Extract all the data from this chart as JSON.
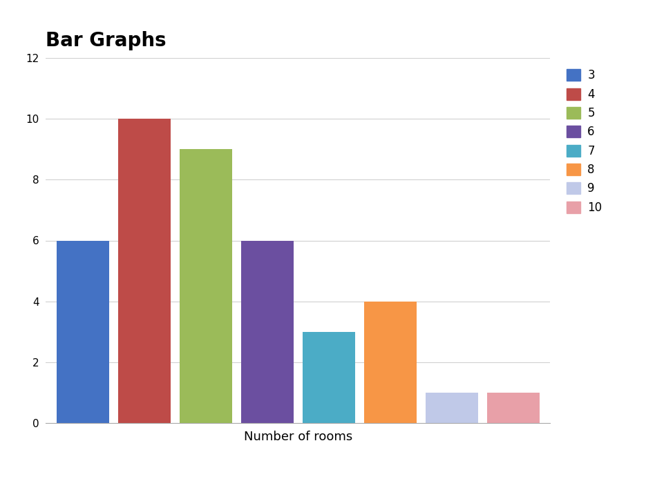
{
  "title": "Bar Graphs",
  "xlabel": "Number of rooms",
  "ylabel": "",
  "categories": [
    3,
    4,
    5,
    6,
    7,
    8,
    9,
    10
  ],
  "values": [
    6,
    10,
    9,
    6,
    3,
    4,
    1,
    1
  ],
  "bar_colors": [
    "#4472C4",
    "#BE4B48",
    "#9BBB59",
    "#6B4FA0",
    "#4BACC6",
    "#F79646",
    "#C0C9E8",
    "#E8A0A8"
  ],
  "ylim": [
    0,
    12
  ],
  "yticks": [
    0,
    2,
    4,
    6,
    8,
    10,
    12
  ],
  "title_fontsize": 20,
  "title_fontweight": "bold",
  "xlabel_fontsize": 13,
  "bar_width": 0.85,
  "background_color": "#ffffff",
  "grid_color": "#d0d0d0",
  "legend_labels": [
    "3",
    "4",
    "5",
    "6",
    "7",
    "8",
    "9",
    "10"
  ],
  "legend_fontsize": 12
}
